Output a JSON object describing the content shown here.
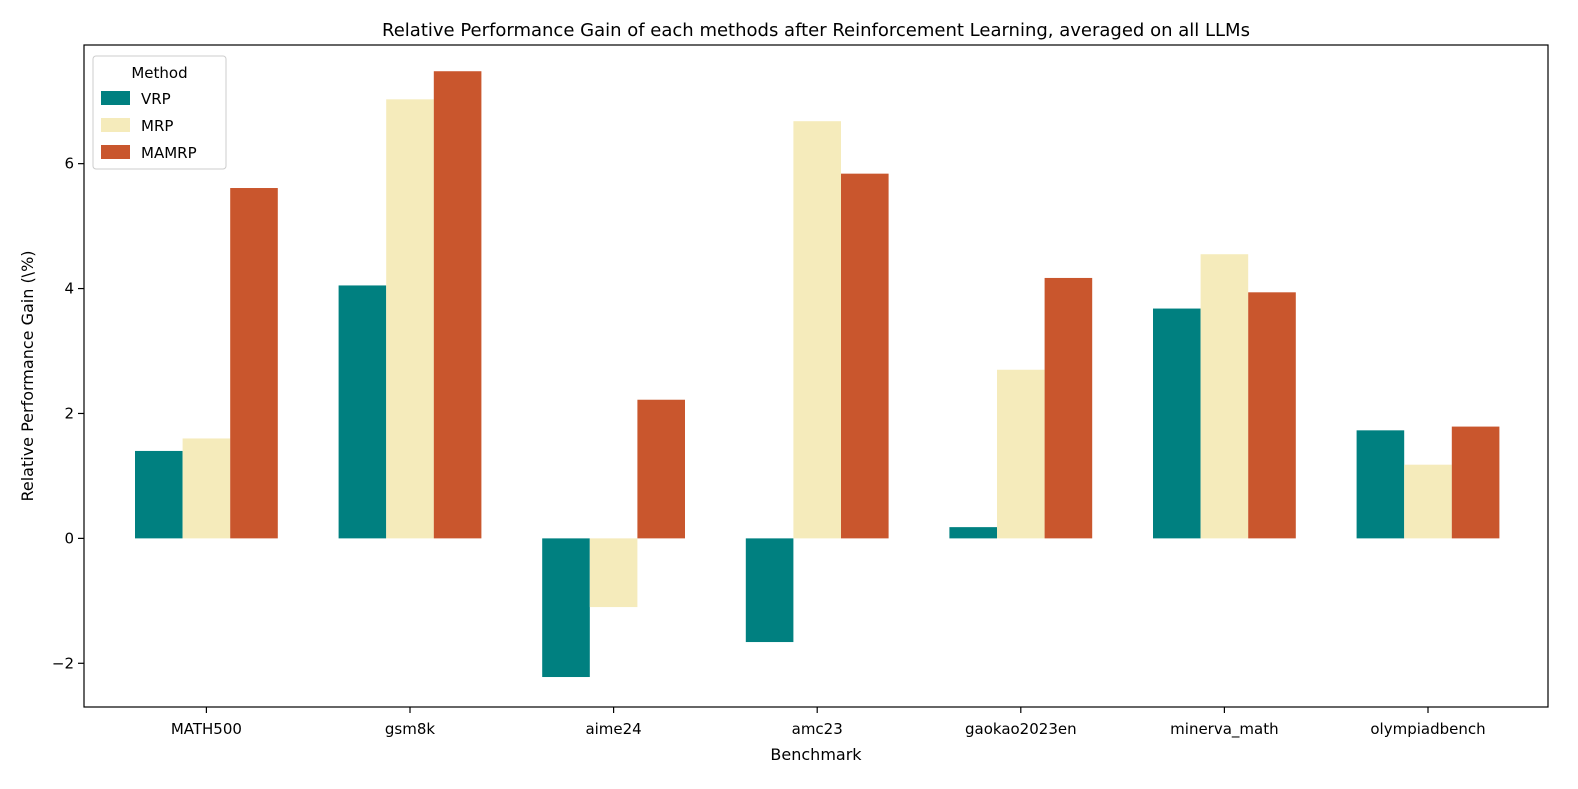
{
  "chart_data": {
    "type": "bar",
    "title": "Relative Performance Gain of each methods after Reinforcement Learning, averaged on all LLMs",
    "xlabel": "Benchmark",
    "ylabel": "Relative Performance Gain (\\%)",
    "categories": [
      "MATH500",
      "gsm8k",
      "aime24",
      "amc23",
      "gaokao2023en",
      "minerva_math",
      "olympiadbench"
    ],
    "series": [
      {
        "name": "VRP",
        "color": "#008080",
        "values": [
          1.4,
          4.05,
          -2.22,
          -1.66,
          0.18,
          3.68,
          1.73
        ]
      },
      {
        "name": "MRP",
        "color": "#f5ebbb",
        "values": [
          1.6,
          7.03,
          -1.1,
          6.68,
          2.7,
          4.55,
          1.18
        ]
      },
      {
        "name": "MAMRP",
        "color": "#c9562d",
        "values": [
          5.61,
          7.48,
          2.22,
          5.84,
          4.17,
          3.94,
          1.79
        ]
      }
    ],
    "ylim": [
      -2.7,
      7.9
    ],
    "yticks": [
      -2,
      0,
      2,
      4,
      6
    ],
    "ytick_labels": [
      "−2",
      "0",
      "2",
      "4",
      "6"
    ],
    "legend": {
      "title": "Method",
      "placement": "top-left"
    },
    "grid": false
  }
}
